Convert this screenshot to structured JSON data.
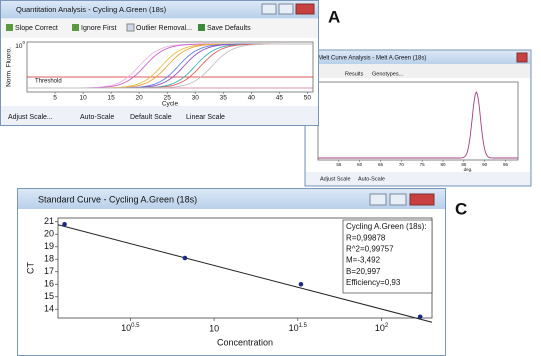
{
  "panel_a": {
    "label": "A",
    "title": "Quantitation Analysis - Cycling A.Green (18s)",
    "toolbar": [
      "Slope Correct",
      "Ignore First",
      "Outlier Removal...",
      "Save Defaults"
    ],
    "chart": {
      "type": "line",
      "ylabel": "Norm. Fluoro.",
      "ytick": {
        "label": "10",
        "exponent": "0"
      },
      "xlabel": "Cycle",
      "xlim": [
        0,
        51
      ],
      "xticks": [
        5,
        10,
        15,
        20,
        25,
        30,
        35,
        40,
        45,
        50
      ],
      "threshold_label": "Threshold",
      "curves": [
        {
          "color": "#e8b8e8",
          "onset": 15
        },
        {
          "color": "#d060d0",
          "onset": 16
        },
        {
          "color": "#e0c040",
          "onset": 19
        },
        {
          "color": "#f0a040",
          "onset": 20
        },
        {
          "color": "#6080e0",
          "onset": 22
        },
        {
          "color": "#9050c0",
          "onset": 23
        },
        {
          "color": "#40b0b0",
          "onset": 25
        },
        {
          "color": "#e06060",
          "onset": 26
        },
        {
          "color": "#c0c0c0",
          "onset": 28
        }
      ]
    },
    "buttons": [
      "Adjust Scale...",
      "Auto-Scale",
      "Default Scale",
      "Linear Scale"
    ]
  },
  "panel_b": {
    "title": "Melt Curve Analysis - Melt A.Green (18s)",
    "toolbar": [
      "Results",
      "Genotypes..."
    ],
    "chart": {
      "type": "line",
      "xlabel": "deg.",
      "xlim": [
        50,
        98
      ],
      "xticks": [
        55,
        60,
        65,
        70,
        75,
        80,
        85,
        90,
        95
      ],
      "peak": 88,
      "color": "#a04080"
    },
    "buttons": [
      "Adjust Scale",
      "Auto-Scale"
    ]
  },
  "panel_c": {
    "label": "C",
    "title": "Standard Curve - Cycling A.Green (18s)",
    "chart": {
      "type": "scatter",
      "xlabel": "Concentration",
      "ylabel": "CT",
      "log_x": true,
      "xlim": [
        1.17,
        200
      ],
      "ylim": [
        13.3,
        21.3
      ],
      "xticks": [
        {
          "value": 3.1623,
          "label": "10",
          "exponent": "0.5"
        },
        10,
        {
          "value": 31.623,
          "label": "10",
          "exponent": "1.5"
        },
        {
          "value": 100,
          "label": "10",
          "exponent": "2"
        }
      ],
      "yticks": [
        14,
        15,
        16,
        17,
        18,
        19,
        20,
        21
      ],
      "x": [
        1.28,
        6.7,
        33,
        170
      ],
      "y": [
        20.8,
        18.1,
        16.0,
        13.4
      ],
      "color": "#1a2a80",
      "fit": {
        "slope": -3.492,
        "intercept": 20.997
      },
      "stats": [
        "Cycling A.Green (18s):",
        "R=0,99878",
        "R^2=0,99757",
        "M=-3,492",
        "B=20,997",
        "Efficiency=0,93"
      ]
    }
  }
}
